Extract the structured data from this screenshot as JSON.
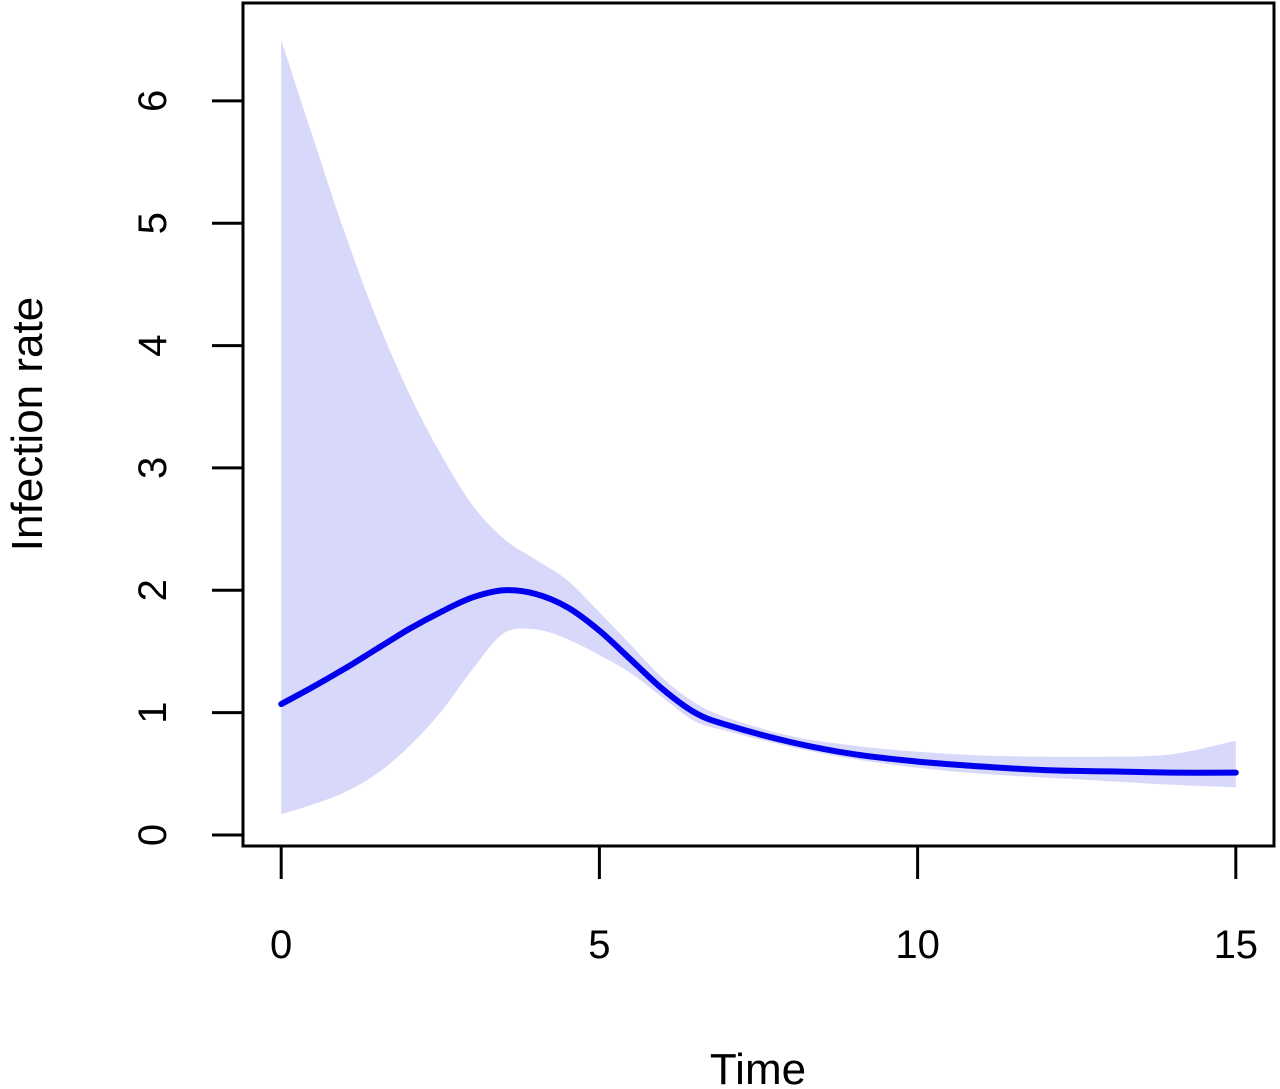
{
  "chart_data": {
    "type": "line",
    "title": "",
    "xlabel": "Time",
    "ylabel": "Infection rate",
    "xlim": [
      -0.6,
      15.6
    ],
    "ylim": [
      -0.09,
      6.8
    ],
    "xticks": [
      0,
      5,
      10,
      15
    ],
    "yticks": [
      0,
      1,
      2,
      3,
      4,
      5,
      6
    ],
    "grid": false,
    "legend": "none",
    "colors": {
      "line": "#0000ee",
      "band": "#d8d8fb",
      "axis": "#000000"
    },
    "series": [
      {
        "x": [
          0,
          0.5,
          1,
          1.5,
          2,
          2.5,
          3,
          3.5,
          4,
          4.5,
          5,
          5.5,
          6,
          6.5,
          7,
          8,
          9,
          10,
          11,
          12,
          13,
          14,
          15
        ],
        "y": [
          1.07,
          1.21,
          1.36,
          1.52,
          1.68,
          1.82,
          1.94,
          2.0,
          1.97,
          1.86,
          1.67,
          1.43,
          1.19,
          1.0,
          0.9,
          0.76,
          0.66,
          0.6,
          0.56,
          0.53,
          0.52,
          0.51,
          0.51
        ],
        "lower": [
          0.17,
          0.25,
          0.35,
          0.5,
          0.72,
          1.0,
          1.35,
          1.65,
          1.68,
          1.6,
          1.47,
          1.32,
          1.12,
          0.93,
          0.85,
          0.72,
          0.62,
          0.55,
          0.5,
          0.47,
          0.44,
          0.41,
          0.39
        ],
        "upper": [
          6.5,
          5.7,
          4.92,
          4.22,
          3.62,
          3.12,
          2.7,
          2.42,
          2.25,
          2.08,
          1.82,
          1.55,
          1.28,
          1.08,
          0.96,
          0.81,
          0.73,
          0.68,
          0.65,
          0.64,
          0.64,
          0.66,
          0.77
        ]
      }
    ]
  }
}
